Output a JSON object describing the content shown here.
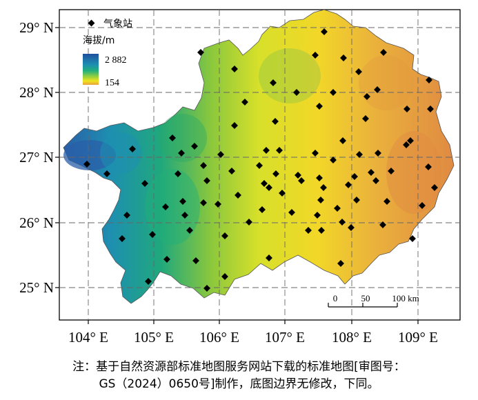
{
  "map": {
    "lat_labels": [
      "29° N",
      "28° N",
      "27° N",
      "26° N",
      "25° N"
    ],
    "lon_labels": [
      "104° E",
      "105° E",
      "106° E",
      "107° E",
      "108° E",
      "109° E"
    ]
  },
  "legend": {
    "station_label": "气象站",
    "elevation_title": "海拔/m",
    "elevation_max": "2 882",
    "elevation_min": "154",
    "colors": [
      "#1f4f9e",
      "#1e8fb0",
      "#21b07a",
      "#9fd23a",
      "#f1e31e",
      "#e8a040",
      "#d86a3a"
    ]
  },
  "scale_bar": {
    "labels": [
      "0",
      "50",
      "100 km"
    ]
  },
  "note": {
    "line1": "注：基于自然资源部标准地图服务网站下载的标准地图[审图号：",
    "line2": "GS（2024）0650号]制作，底图边界无修改，下同。"
  },
  "stations_count_shown": 85
}
